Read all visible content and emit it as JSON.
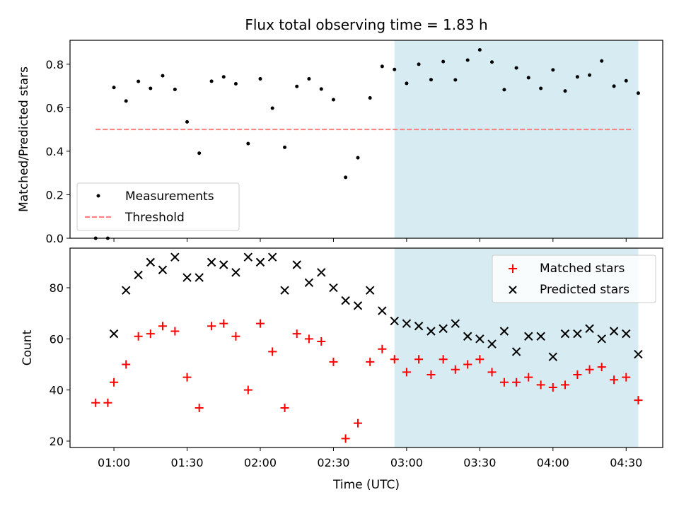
{
  "chart_data": [
    {
      "type": "scatter",
      "title": "Flux total observing time = 1.83 h",
      "xlabel": "",
      "ylabel": "Matched/Predicted stars",
      "ylim": [
        0,
        0.91
      ],
      "xlim": [
        0.7,
        4.75
      ],
      "yticks": [
        "0.0",
        "0.2",
        "0.4",
        "0.6",
        "0.8"
      ],
      "grid": false,
      "legend_position": "lower-left",
      "legend": [
        "Measurements",
        "Threshold"
      ],
      "threshold": {
        "name": "Threshold",
        "value": 0.5,
        "x_start": 0.875,
        "x_end": 4.55,
        "color": "#ff7f7f"
      },
      "highlight_span": {
        "x_start": 2.917,
        "x_end": 4.583,
        "color": "#add8e6"
      },
      "series": [
        {
          "name": "Measurements",
          "color": "#000000",
          "x": [
            0.875,
            0.958,
            1.0,
            1.083,
            1.167,
            1.25,
            1.333,
            1.417,
            1.5,
            1.583,
            1.667,
            1.75,
            1.833,
            1.917,
            2.0,
            2.083,
            2.167,
            2.25,
            2.333,
            2.417,
            2.5,
            2.583,
            2.667,
            2.75,
            2.833,
            2.917,
            3.0,
            3.083,
            3.167,
            3.25,
            3.333,
            3.417,
            3.5,
            3.583,
            3.667,
            3.75,
            3.833,
            3.917,
            4.0,
            4.083,
            4.167,
            4.25,
            4.333,
            4.417,
            4.5,
            4.583
          ],
          "values": [
            0.0,
            0.0,
            0.693,
            0.631,
            0.721,
            0.689,
            0.747,
            0.684,
            0.535,
            0.391,
            0.722,
            0.742,
            0.71,
            0.435,
            0.733,
            0.598,
            0.418,
            0.698,
            0.733,
            0.686,
            0.637,
            0.28,
            0.37,
            0.645,
            0.79,
            0.776,
            0.712,
            0.8,
            0.729,
            0.812,
            0.728,
            0.819,
            0.866,
            0.81,
            0.683,
            0.783,
            0.738,
            0.689,
            0.774,
            0.677,
            0.742,
            0.75,
            0.815,
            0.699,
            0.724,
            0.667
          ]
        }
      ]
    },
    {
      "type": "scatter",
      "title": "",
      "xlabel": "Time (UTC)",
      "ylabel": "Count",
      "ylim": [
        17.5,
        95.5
      ],
      "xlim": [
        0.7,
        4.75
      ],
      "xticks": [
        "01:00",
        "01:30",
        "02:00",
        "02:30",
        "03:00",
        "03:30",
        "04:00",
        "04:30"
      ],
      "yticks": [
        "20",
        "40",
        "60",
        "80"
      ],
      "grid": false,
      "legend_position": "top-right",
      "legend": [
        "Matched stars",
        "Predicted stars"
      ],
      "highlight_span": {
        "x_start": 2.917,
        "x_end": 4.583,
        "color": "#add8e6"
      },
      "series": [
        {
          "name": "Matched stars",
          "marker": "plus",
          "color": "#ff0000",
          "x": [
            0.875,
            0.958,
            1.0,
            1.083,
            1.167,
            1.25,
            1.333,
            1.417,
            1.5,
            1.583,
            1.667,
            1.75,
            1.833,
            1.917,
            2.0,
            2.083,
            2.167,
            2.25,
            2.333,
            2.417,
            2.5,
            2.583,
            2.667,
            2.75,
            2.833,
            2.917,
            3.0,
            3.083,
            3.167,
            3.25,
            3.333,
            3.417,
            3.5,
            3.583,
            3.667,
            3.75,
            3.833,
            3.917,
            4.0,
            4.083,
            4.167,
            4.25,
            4.333,
            4.417,
            4.5,
            4.583
          ],
          "values": [
            35,
            35,
            43,
            50,
            61,
            62,
            65,
            63,
            45,
            33,
            65,
            66,
            61,
            40,
            66,
            55,
            33,
            62,
            60,
            59,
            51,
            21,
            27,
            51,
            56,
            52,
            47,
            52,
            46,
            52,
            48,
            50,
            52,
            47,
            43,
            43,
            45,
            42,
            41,
            42,
            46,
            48,
            49,
            44,
            45,
            36
          ]
        },
        {
          "name": "Predicted stars",
          "marker": "x",
          "color": "#000000",
          "x": [
            1.0,
            1.083,
            1.167,
            1.25,
            1.333,
            1.417,
            1.5,
            1.583,
            1.667,
            1.75,
            1.833,
            1.917,
            2.0,
            2.083,
            2.167,
            2.25,
            2.333,
            2.417,
            2.5,
            2.583,
            2.667,
            2.75,
            2.833,
            2.917,
            3.0,
            3.083,
            3.167,
            3.25,
            3.333,
            3.417,
            3.5,
            3.583,
            3.667,
            3.75,
            3.833,
            3.917,
            4.0,
            4.083,
            4.167,
            4.25,
            4.333,
            4.417,
            4.5,
            4.583
          ],
          "values": [
            62,
            79,
            85,
            90,
            87,
            92,
            84,
            84,
            90,
            89,
            86,
            92,
            90,
            92,
            79,
            89,
            82,
            86,
            80,
            75,
            73,
            79,
            71,
            67,
            66,
            65,
            63,
            64,
            66,
            61,
            60,
            58,
            63,
            55,
            61,
            61,
            53,
            62,
            62,
            64,
            60,
            63,
            62,
            54
          ]
        }
      ]
    }
  ]
}
